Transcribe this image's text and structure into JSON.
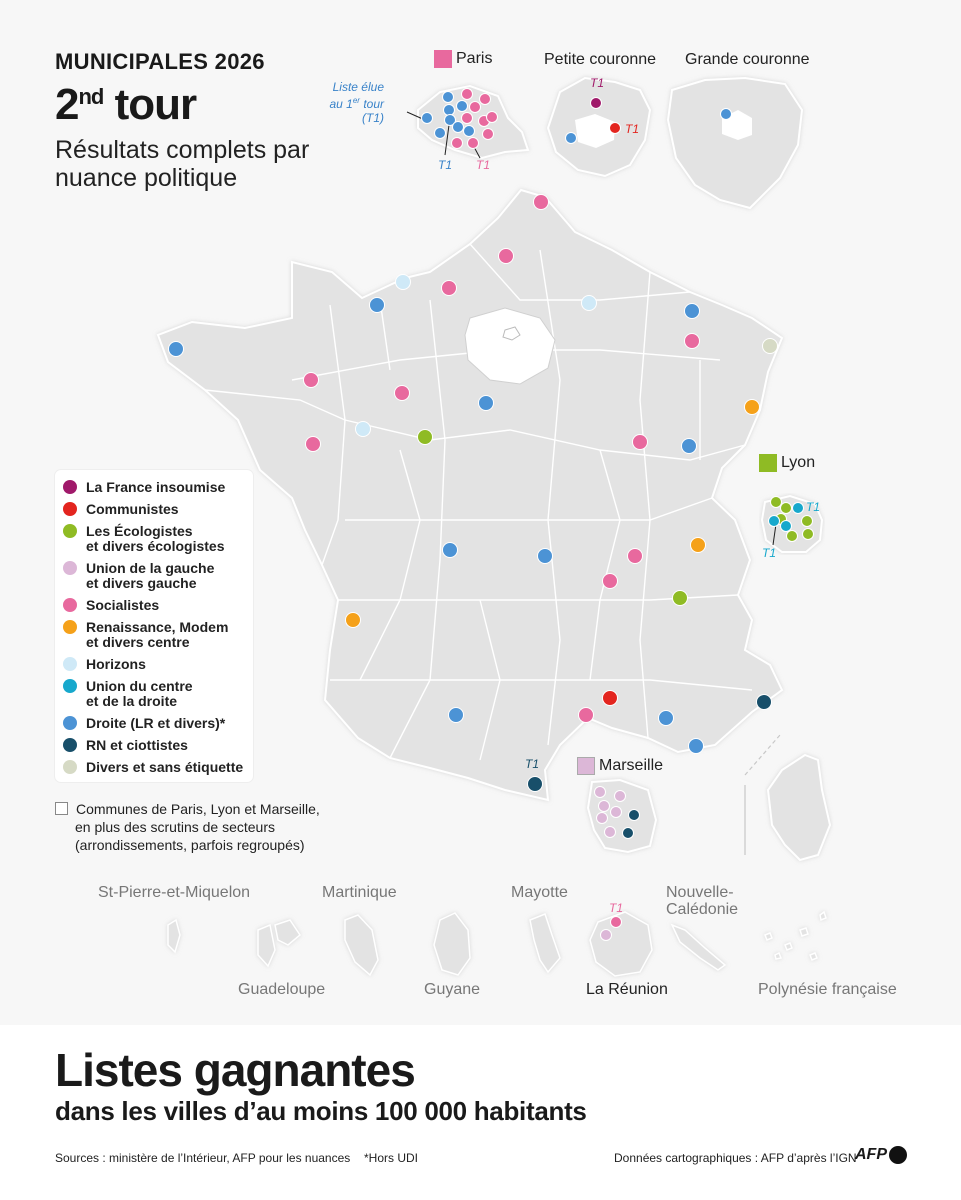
{
  "header": {
    "kicker_main": "MUNICIPALES",
    "kicker_year": "2026",
    "title_main": "2",
    "title_sup": "nd",
    "title_rest": " tour",
    "subtitle": "Résultats complets par nuance politique"
  },
  "insets": {
    "paris": "Paris",
    "petite_couronne": "Petite couronne",
    "grande_couronne": "Grande couronne",
    "lyon": "Lyon",
    "marseille": "Marseille",
    "paris_callout_1": "Liste élue",
    "paris_callout_2a": "au 1",
    "paris_callout_2b": "er",
    "paris_callout_2c": " tour",
    "paris_callout_3": "(T1)",
    "t1": "T1"
  },
  "legend": {
    "items": [
      {
        "label_1": "La France insoumise",
        "label_2": "",
        "color": "#a0196a"
      },
      {
        "label_1": "Communistes",
        "label_2": "",
        "color": "#e3251f"
      },
      {
        "label_1": "Les Écologistes",
        "label_2": "et divers écologistes",
        "color": "#8fbb24"
      },
      {
        "label_1": "Union de la gauche",
        "label_2": "et divers gauche",
        "color": "#dcb7d7"
      },
      {
        "label_1": "Socialistes",
        "label_2": "",
        "color": "#e8699e"
      },
      {
        "label_1": "Renaissance, Modem",
        "label_2": "et divers centre",
        "color": "#f5a11a"
      },
      {
        "label_1": "Horizons",
        "label_2": "",
        "color": "#cfe9f7"
      },
      {
        "label_1": "Union du centre",
        "label_2": "et de la droite",
        "color": "#17a8cc"
      },
      {
        "label_1": "Droite (LR et divers)*",
        "label_2": "",
        "color": "#4c93d5"
      },
      {
        "label_1": "RN et ciottistes",
        "label_2": "",
        "color": "#184f6a"
      },
      {
        "label_1": "Divers et sans étiquette",
        "label_2": "",
        "color": "#d6dac5"
      }
    ],
    "note_1": "Communes de Paris, Lyon et Marseille,",
    "note_2": "en plus des scrutins de secteurs",
    "note_3": "(arrondissements, parfois regroupés)"
  },
  "overseas": {
    "spm": "St-Pierre-et-Miquelon",
    "martinique": "Martinique",
    "mayotte": "Mayotte",
    "nc_1": "Nouvelle-",
    "nc_2": "Calédonie",
    "guadeloupe": "Guadeloupe",
    "guyane": "Guyane",
    "reunion": "La Réunion",
    "polynesie": "Polynésie française"
  },
  "footer": {
    "headline": "Listes gagnantes",
    "subheadline": "dans les villes d’au moins 100 000 habitants",
    "sources": "Sources : ministère de l’Intérieur, AFP pour les nuances",
    "footnote": "*Hors UDI",
    "cartography": "Données cartographiques : AFP d’après l’IGN",
    "logo": "AFP"
  },
  "colors": {
    "lfi": "#a0196a",
    "pc": "#e3251f",
    "eco": "#8fbb24",
    "ug": "#dcb7d7",
    "soc": "#e8699e",
    "ren": "#f5a11a",
    "hor": "#cfe9f7",
    "ucd": "#17a8cc",
    "lr": "#4c93d5",
    "rn": "#184f6a",
    "div": "#d6dac5",
    "land": "#e3e3e3",
    "border": "#ffffff",
    "callout": "#3a83c9"
  }
}
